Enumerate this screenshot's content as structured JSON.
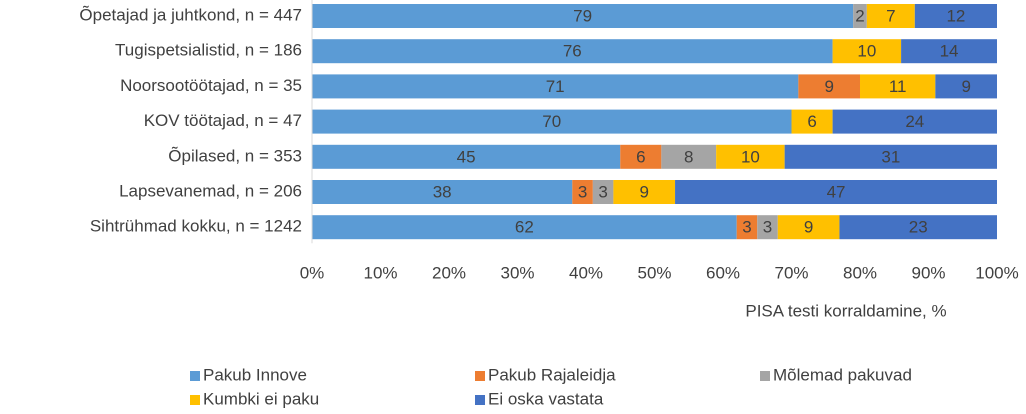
{
  "chart_data": {
    "type": "stacked-barh",
    "categories": [
      "Õpetajad ja juhtkond, n = 447",
      "Tugispetsialistid, n = 186",
      "Noorsootöötajad, n = 35",
      "KOV töötajad, n = 47",
      "Õpilased, n = 353",
      "Lapsevanemad, n = 206",
      "Sihtrühmad kokku, n = 1242"
    ],
    "series": [
      {
        "name": "Pakub Innove",
        "color": "#5b9bd5",
        "values": [
          79,
          76,
          71,
          70,
          45,
          38,
          62
        ]
      },
      {
        "name": "Pakub Rajaleidja",
        "color": "#ed7d31",
        "values": [
          null,
          null,
          9,
          null,
          6,
          3,
          3
        ]
      },
      {
        "name": "Mõlemad pakuvad",
        "color": "#a5a5a5",
        "values": [
          2,
          null,
          null,
          null,
          8,
          3,
          3
        ]
      },
      {
        "name": "Kumbki ei paku",
        "color": "#ffc000",
        "values": [
          7,
          10,
          11,
          6,
          10,
          9,
          9
        ]
      },
      {
        "name": "Ei oska vastata",
        "color": "#4472c4",
        "values": [
          12,
          14,
          9,
          24,
          31,
          47,
          23
        ]
      }
    ],
    "xlabel": "PISA testi korraldamine, %",
    "xlim": [
      0,
      100
    ],
    "xticks": [
      {
        "value": 0,
        "label": "0%"
      },
      {
        "value": 10,
        "label": "10%"
      },
      {
        "value": 20,
        "label": "20%"
      },
      {
        "value": 30,
        "label": "30%"
      },
      {
        "value": 40,
        "label": "40%"
      },
      {
        "value": 50,
        "label": "50%"
      },
      {
        "value": 60,
        "label": "60%"
      },
      {
        "value": 70,
        "label": "70%"
      },
      {
        "value": 80,
        "label": "80%"
      },
      {
        "value": 90,
        "label": "90%"
      },
      {
        "value": 100,
        "label": "100%"
      }
    ],
    "legend": "bottom"
  }
}
